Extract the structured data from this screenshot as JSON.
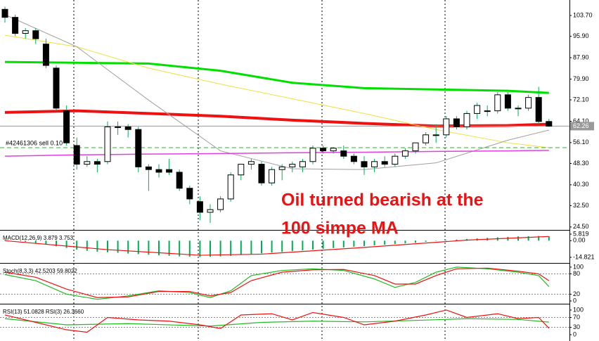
{
  "chart_data": [
    {
      "type": "candlestick",
      "open": [
        106,
        103,
        97,
        98,
        93,
        84,
        68,
        55,
        48,
        49,
        49,
        62,
        62,
        61,
        47,
        46,
        46,
        45,
        39,
        34,
        30,
        31,
        35,
        44,
        48,
        48,
        41,
        46,
        47,
        47,
        49,
        54,
        53,
        53,
        51,
        49,
        47,
        49,
        48,
        51,
        53,
        56,
        59,
        59,
        65,
        62,
        67,
        68,
        68,
        74,
        69,
        69,
        73,
        64
      ],
      "high": [
        107,
        104,
        99,
        99,
        95,
        85,
        70,
        58,
        51,
        50,
        64,
        64,
        63,
        62,
        48,
        48,
        50,
        46,
        40,
        36,
        33,
        36,
        45,
        48,
        50,
        49,
        47,
        48,
        49,
        50,
        55,
        55,
        54,
        55,
        52,
        51,
        50,
        51,
        52,
        54,
        56,
        60,
        63,
        66,
        66,
        68,
        71,
        70,
        75,
        75,
        70,
        74,
        77,
        65
      ],
      "low": [
        101,
        96,
        95,
        93,
        84,
        68,
        55,
        46,
        47,
        45,
        48,
        59,
        58,
        45,
        38,
        43,
        44,
        38,
        33,
        27,
        26,
        30,
        34,
        42,
        46,
        40,
        40,
        42,
        45,
        45,
        48,
        52,
        52,
        50,
        48,
        44,
        45,
        47,
        47,
        50,
        52,
        55,
        56,
        58,
        61,
        61,
        65,
        66,
        67,
        68,
        66,
        68,
        63,
        62
      ],
      "close": [
        103,
        97,
        98,
        95,
        85,
        69,
        56,
        48,
        49,
        48,
        62,
        62,
        61,
        47,
        46,
        45,
        45,
        39,
        35,
        30,
        31,
        35,
        44,
        48,
        49,
        41,
        46,
        47,
        48,
        49,
        54,
        53,
        54,
        51,
        49,
        47,
        49,
        48,
        51,
        53,
        56,
        59,
        59,
        65,
        62,
        67,
        70,
        68,
        74,
        69,
        69,
        73,
        64,
        62.26
      ],
      "bull_color": "#ffffff",
      "bear_color": "#000000",
      "wick_color": "#00b050",
      "lines": [
        {
          "color": "#00e000",
          "width": 3,
          "x": [
            0,
            7,
            14,
            21,
            28,
            35,
            42,
            49,
            53
          ],
          "values": [
            86.3,
            86,
            85.7,
            83,
            78.5,
            76.5,
            76,
            75.5,
            74.7
          ]
        },
        {
          "color": "#ee1111",
          "width": 4,
          "x": [
            0,
            7,
            14,
            21,
            28,
            35,
            42,
            49,
            53
          ],
          "values": [
            67.4,
            68,
            67,
            66,
            64.5,
            63.3,
            62.3,
            62.5,
            63
          ]
        },
        {
          "color": "#f0e040",
          "width": 1,
          "x": [
            0,
            7,
            14,
            21,
            28,
            35,
            42,
            49,
            53
          ],
          "values": [
            96.3,
            92,
            84,
            78,
            72.5,
            67,
            61,
            56,
            54.2
          ]
        },
        {
          "color": "#a0a0a0",
          "width": 1,
          "x": [
            0,
            7,
            14,
            21,
            28,
            35,
            42,
            49,
            53
          ],
          "values": [
            104,
            92,
            72,
            53,
            46.3,
            46,
            48.5,
            57,
            60.8
          ]
        },
        {
          "color": "#e040e0",
          "width": 1.5,
          "x": [
            0,
            7,
            14,
            21,
            28,
            35,
            42,
            49,
            53
          ],
          "values": [
            51,
            51.5,
            51.8,
            52,
            52.3,
            52.5,
            52.8,
            53,
            53.2
          ]
        }
      ],
      "order_label": "#42461306 sell 0.10",
      "order_level": 54.2,
      "order_color": "#22bb22",
      "current_price": {
        "value": 62.26,
        "label": "62.26"
      },
      "annotation": [
        "Oil turned bearish at the",
        "100 simpe MA"
      ],
      "annotation_color": "#ee1111",
      "ylim": [
        23.4,
        109.5
      ],
      "yticks": [
        {
          "value": 103.7,
          "label": "103.70"
        },
        {
          "value": 95.9,
          "label": "95.90"
        },
        {
          "value": 87.9,
          "label": "87.90"
        },
        {
          "value": 79.9,
          "label": "79.90"
        },
        {
          "value": 72.1,
          "label": "72.10"
        },
        {
          "value": 64.1,
          "label": "64.10"
        },
        {
          "value": 56.1,
          "label": "56.10"
        },
        {
          "value": 48.3,
          "label": "48.30"
        },
        {
          "value": 40.3,
          "label": "40.30"
        },
        {
          "value": 32.5,
          "label": "32.50"
        },
        {
          "value": 24.5,
          "label": "24.50"
        }
      ]
    },
    {
      "type": "macd",
      "label": "MACD(12,26,9) 3.879 3.753",
      "color": "#00b050",
      "values": [
        0.5,
        0,
        -1,
        -2,
        -3.5,
        -5,
        -6.5,
        -8,
        -9,
        -9.8,
        -10.3,
        -10.8,
        -11.5,
        -12,
        -12.5,
        -13,
        -13.5,
        -14,
        -14.3,
        -14.5,
        -14.3,
        -14,
        -13.5,
        -12.8,
        -12,
        -11.3,
        -10.6,
        -10,
        -9.3,
        -8.6,
        -8,
        -7.3,
        -6.6,
        -6,
        -5.4,
        -4.8,
        -4.2,
        -3.6,
        -3,
        -2.4,
        -1.8,
        -1,
        -0.3,
        0.4,
        1,
        1.5,
        2,
        2.5,
        3,
        3.4,
        3.8,
        4,
        4.2,
        3.879
      ],
      "signal": {
        "color": "#ee1111",
        "x": [
          0,
          10,
          19,
          25,
          35,
          45,
          53
        ],
        "values": [
          0,
          -8,
          -13,
          -12,
          -6,
          0.5,
          3.753
        ]
      },
      "ylim": [
        -18.6,
        7.7
      ],
      "yticks": [
        5.819,
        {
          "value": 0,
          "label": "0.00"
        },
        -14.821
      ]
    },
    {
      "type": "line",
      "label": "Stoch(8,3,3) 42.5203 59.8022",
      "level_lines": true,
      "series": [
        {
          "color": "#22bb22",
          "x": [
            0,
            3,
            6,
            9,
            12,
            15,
            18,
            20,
            22,
            24,
            27,
            30,
            33,
            36,
            38,
            40,
            42,
            44,
            47,
            50,
            52,
            53
          ],
          "values": [
            78,
            60,
            20,
            5,
            15,
            30,
            25,
            10,
            30,
            75,
            90,
            95,
            90,
            65,
            40,
            55,
            85,
            100,
            95,
            85,
            75,
            42.5203
          ]
        },
        {
          "color": "#ee1111",
          "x": [
            0,
            3,
            6,
            9,
            12,
            15,
            18,
            20,
            22,
            24,
            27,
            30,
            33,
            36,
            38,
            40,
            42,
            44,
            47,
            50,
            52,
            53
          ],
          "values": [
            85,
            70,
            35,
            10,
            12,
            28,
            28,
            15,
            25,
            60,
            85,
            92,
            93,
            75,
            50,
            50,
            75,
            95,
            97,
            88,
            80,
            59.8022
          ]
        }
      ],
      "ylim": [
        -4,
        106
      ],
      "yticks": [
        100,
        80,
        20,
        0
      ]
    },
    {
      "type": "line",
      "label": "RSI(13) 51.0828  RSI(3) 26.3660",
      "level_lines": true,
      "series": [
        {
          "color": "#22bb22",
          "x": [
            0,
            6,
            12,
            20,
            25,
            30,
            35,
            40,
            45,
            50,
            53
          ],
          "values": [
            65,
            40,
            45,
            35,
            50,
            55,
            52,
            58,
            65,
            62,
            51.0828
          ]
        },
        {
          "color": "#ee1111",
          "x": [
            0,
            3,
            6,
            8,
            10,
            13,
            16,
            19,
            21,
            23,
            26,
            28,
            30,
            33,
            35,
            38,
            41,
            43,
            45,
            48,
            50,
            52,
            53
          ],
          "values": [
            80,
            50,
            20,
            10,
            70,
            60,
            55,
            40,
            25,
            80,
            85,
            60,
            90,
            70,
            40,
            55,
            80,
            100,
            70,
            85,
            65,
            70,
            26.366
          ]
        }
      ],
      "ylim": [
        -17,
        117
      ],
      "yticks": [
        100,
        70,
        30,
        0
      ]
    }
  ]
}
